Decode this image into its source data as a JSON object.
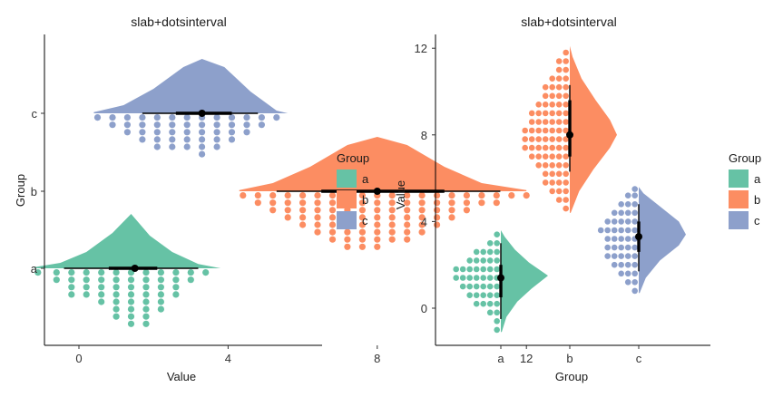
{
  "chart_data": [
    {
      "type": "slab+dotsinterval",
      "orientation": "horizontal",
      "title": "slab+dotsinterval",
      "xlabel": "Value",
      "ylabel": "Group",
      "xlim": [
        -2,
        12.5
      ],
      "xticks": [
        "0",
        "4",
        "8",
        "12"
      ],
      "xtick_values": [
        0,
        4,
        8,
        12
      ],
      "categories": [
        "a",
        "b",
        "c"
      ],
      "legend": {
        "title": "Group",
        "position": "right",
        "items": [
          "a",
          "b",
          "c"
        ]
      },
      "series": [
        {
          "name": "a",
          "color": "#66C2A5",
          "median": 1.5,
          "interval_66": [
            0.8,
            2.1
          ],
          "interval_95": [
            -0.4,
            3.2
          ],
          "dot_stacks": [
            [
              -1.1,
              1
            ],
            [
              -0.6,
              2
            ],
            [
              -0.2,
              4
            ],
            [
              0.2,
              4
            ],
            [
              0.6,
              5
            ],
            [
              1.0,
              7
            ],
            [
              1.4,
              8
            ],
            [
              1.8,
              8
            ],
            [
              2.2,
              6
            ],
            [
              2.6,
              4
            ],
            [
              3.0,
              2
            ],
            [
              3.4,
              1
            ]
          ],
          "density": [
            [
              -1.2,
              0.02
            ],
            [
              -0.5,
              0.1
            ],
            [
              0.2,
              0.3
            ],
            [
              0.9,
              0.65
            ],
            [
              1.4,
              1.0
            ],
            [
              1.9,
              0.6
            ],
            [
              2.5,
              0.3
            ],
            [
              3.2,
              0.08
            ],
            [
              3.8,
              0.0
            ]
          ]
        },
        {
          "name": "b",
          "color": "#FC8D62",
          "median": 8.0,
          "interval_66": [
            6.5,
            9.8
          ],
          "interval_95": [
            5.3,
            11.3
          ],
          "dot_stacks": [
            [
              4.4,
              1
            ],
            [
              4.8,
              2
            ],
            [
              5.2,
              3
            ],
            [
              5.6,
              4
            ],
            [
              6.0,
              5
            ],
            [
              6.4,
              6
            ],
            [
              6.8,
              7
            ],
            [
              7.2,
              8
            ],
            [
              7.6,
              8
            ],
            [
              8.0,
              8
            ],
            [
              8.4,
              7
            ],
            [
              8.8,
              7
            ],
            [
              9.2,
              6
            ],
            [
              9.6,
              5
            ],
            [
              10.0,
              4
            ],
            [
              10.4,
              3
            ],
            [
              10.8,
              2
            ],
            [
              11.2,
              2
            ],
            [
              11.6,
              1
            ],
            [
              12.0,
              1
            ]
          ],
          "density": [
            [
              4.3,
              0.02
            ],
            [
              5.2,
              0.15
            ],
            [
              6.2,
              0.45
            ],
            [
              7.2,
              0.85
            ],
            [
              8.0,
              1.0
            ],
            [
              8.8,
              0.85
            ],
            [
              9.8,
              0.45
            ],
            [
              10.8,
              0.15
            ],
            [
              12.0,
              0.02
            ]
          ]
        },
        {
          "name": "c",
          "color": "#8DA0CB",
          "median": 3.3,
          "interval_66": [
            2.6,
            4.1
          ],
          "interval_95": [
            1.7,
            4.8
          ],
          "dot_stacks": [
            [
              0.5,
              1
            ],
            [
              0.9,
              2
            ],
            [
              1.3,
              3
            ],
            [
              1.7,
              4
            ],
            [
              2.1,
              5
            ],
            [
              2.5,
              5
            ],
            [
              2.9,
              5
            ],
            [
              3.3,
              6
            ],
            [
              3.7,
              5
            ],
            [
              4.1,
              4
            ],
            [
              4.5,
              3
            ],
            [
              4.9,
              2
            ],
            [
              5.3,
              1
            ]
          ],
          "density": [
            [
              0.4,
              0.02
            ],
            [
              1.2,
              0.15
            ],
            [
              2.0,
              0.45
            ],
            [
              2.8,
              0.85
            ],
            [
              3.3,
              1.0
            ],
            [
              3.9,
              0.85
            ],
            [
              4.6,
              0.4
            ],
            [
              5.3,
              0.05
            ],
            [
              5.6,
              0.0
            ]
          ]
        }
      ]
    },
    {
      "type": "slab+dotsinterval",
      "orientation": "vertical",
      "title": "slab+dotsinterval",
      "xlabel": "Group",
      "ylabel": "Value",
      "ylim": [
        -1.8,
        12.3
      ],
      "yticks": [
        "0",
        "4",
        "8",
        "12"
      ],
      "ytick_values": [
        0,
        4,
        8,
        12
      ],
      "categories": [
        "a",
        "b",
        "c"
      ],
      "legend": {
        "title": "Group",
        "position": "right",
        "items": [
          "a",
          "b",
          "c"
        ]
      },
      "series": [
        {
          "name": "a",
          "color": "#66C2A5",
          "median": 1.4,
          "interval_66": [
            0.5,
            2.0
          ],
          "interval_95": [
            -0.5,
            3.0
          ],
          "dot_stacks": [
            [
              -1.0,
              1
            ],
            [
              -0.6,
              1
            ],
            [
              -0.2,
              2
            ],
            [
              0.2,
              4
            ],
            [
              0.6,
              5
            ],
            [
              1.0,
              6
            ],
            [
              1.4,
              7
            ],
            [
              1.8,
              7
            ],
            [
              2.2,
              5
            ],
            [
              2.6,
              4
            ],
            [
              3.0,
              2
            ],
            [
              3.4,
              1
            ]
          ],
          "density": [
            [
              -1.1,
              0.02
            ],
            [
              -0.4,
              0.12
            ],
            [
              0.3,
              0.35
            ],
            [
              0.9,
              0.65
            ],
            [
              1.5,
              1.0
            ],
            [
              2.1,
              0.6
            ],
            [
              2.7,
              0.3
            ],
            [
              3.3,
              0.08
            ],
            [
              3.6,
              0.0
            ]
          ]
        },
        {
          "name": "b",
          "color": "#FC8D62",
          "median": 8.0,
          "interval_66": [
            7.0,
            9.6
          ],
          "interval_95": [
            6.3,
            10.3
          ],
          "dot_stacks": [
            [
              4.6,
              1
            ],
            [
              5.0,
              2
            ],
            [
              5.4,
              3
            ],
            [
              5.8,
              4
            ],
            [
              6.2,
              4
            ],
            [
              6.6,
              5
            ],
            [
              7.0,
              6
            ],
            [
              7.4,
              7
            ],
            [
              7.8,
              7
            ],
            [
              8.2,
              7
            ],
            [
              8.6,
              6
            ],
            [
              9.0,
              6
            ],
            [
              9.4,
              5
            ],
            [
              9.8,
              4
            ],
            [
              10.2,
              4
            ],
            [
              10.6,
              3
            ],
            [
              11.0,
              2
            ],
            [
              11.4,
              2
            ],
            [
              11.8,
              1
            ]
          ],
          "density": [
            [
              4.4,
              0.02
            ],
            [
              5.4,
              0.2
            ],
            [
              6.4,
              0.5
            ],
            [
              7.4,
              0.85
            ],
            [
              8.0,
              1.0
            ],
            [
              8.7,
              0.85
            ],
            [
              9.6,
              0.55
            ],
            [
              10.6,
              0.25
            ],
            [
              11.6,
              0.06
            ],
            [
              12.1,
              0.0
            ]
          ]
        },
        {
          "name": "c",
          "color": "#8DA0CB",
          "median": 3.3,
          "interval_66": [
            2.6,
            4.0
          ],
          "interval_95": [
            1.7,
            4.8
          ],
          "dot_stacks": [
            [
              0.8,
              1
            ],
            [
              1.2,
              2
            ],
            [
              1.6,
              3
            ],
            [
              2.0,
              4
            ],
            [
              2.4,
              5
            ],
            [
              2.8,
              5
            ],
            [
              3.2,
              5
            ],
            [
              3.6,
              6
            ],
            [
              4.0,
              5
            ],
            [
              4.4,
              4
            ],
            [
              4.8,
              3
            ],
            [
              5.2,
              2
            ],
            [
              5.5,
              1
            ]
          ],
          "density": [
            [
              0.7,
              0.02
            ],
            [
              1.4,
              0.15
            ],
            [
              2.2,
              0.45
            ],
            [
              2.9,
              0.85
            ],
            [
              3.4,
              1.0
            ],
            [
              4.0,
              0.85
            ],
            [
              4.7,
              0.45
            ],
            [
              5.3,
              0.1
            ],
            [
              5.6,
              0.0
            ]
          ]
        }
      ]
    }
  ]
}
